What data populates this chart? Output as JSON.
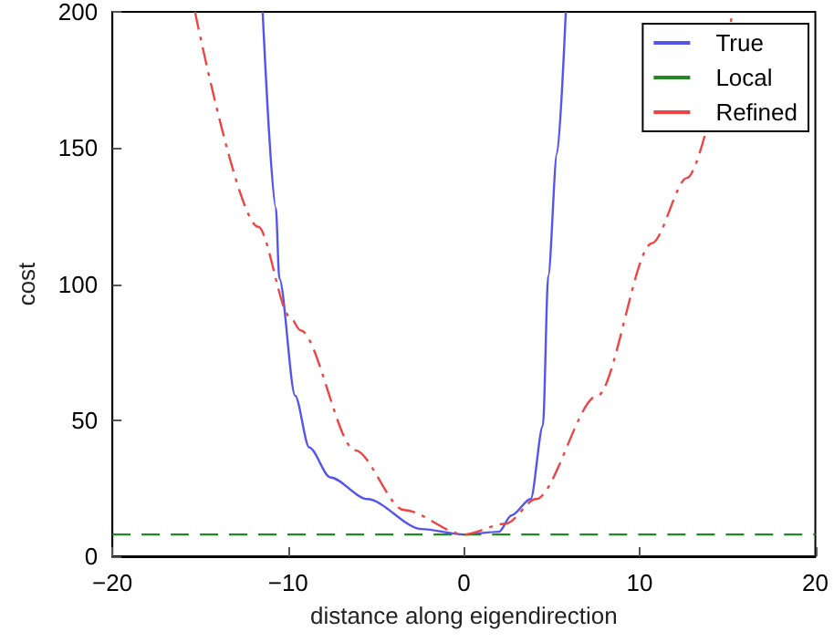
{
  "chart_data": {
    "type": "line",
    "xlabel": "distance along eigendirection",
    "ylabel": "cost",
    "xlim": [
      -20,
      20
    ],
    "xticks": [
      -20,
      -10,
      0,
      10,
      20
    ],
    "ylim": [
      0,
      200
    ],
    "yticks": [
      0,
      50,
      100,
      150,
      200
    ],
    "grid": false,
    "legend": "top right",
    "marker": "none",
    "series": [
      {
        "name": "True",
        "color": "#5555ee",
        "line_style": "solid",
        "x": [
          -11.45,
          -10.7,
          -10.5,
          -9.6,
          -8.8,
          -7.6,
          -5.5,
          -2.4,
          0,
          2,
          2.7,
          3.8,
          4.5,
          4.8,
          5.3,
          5.8
        ],
        "values": [
          200,
          128,
          102,
          59,
          40,
          29,
          21,
          10,
          8,
          9,
          15,
          21,
          48,
          103,
          148,
          200
        ]
      },
      {
        "name": "Local",
        "color": "#228822",
        "line_style": "dashed",
        "x": [
          -20,
          20
        ],
        "values": [
          8,
          8
        ]
      },
      {
        "name": "Refined",
        "color": "#ee4444",
        "line_style": "dashdot",
        "x": [
          -15.3,
          -11.7,
          -9.9,
          -9.3,
          -6.2,
          -3.4,
          0,
          2.4,
          4.1,
          7.6,
          10.7,
          12.7,
          15.3
        ],
        "values": [
          200,
          121,
          88,
          83,
          39,
          17,
          8,
          12,
          21,
          59,
          115,
          139,
          200
        ]
      }
    ]
  }
}
